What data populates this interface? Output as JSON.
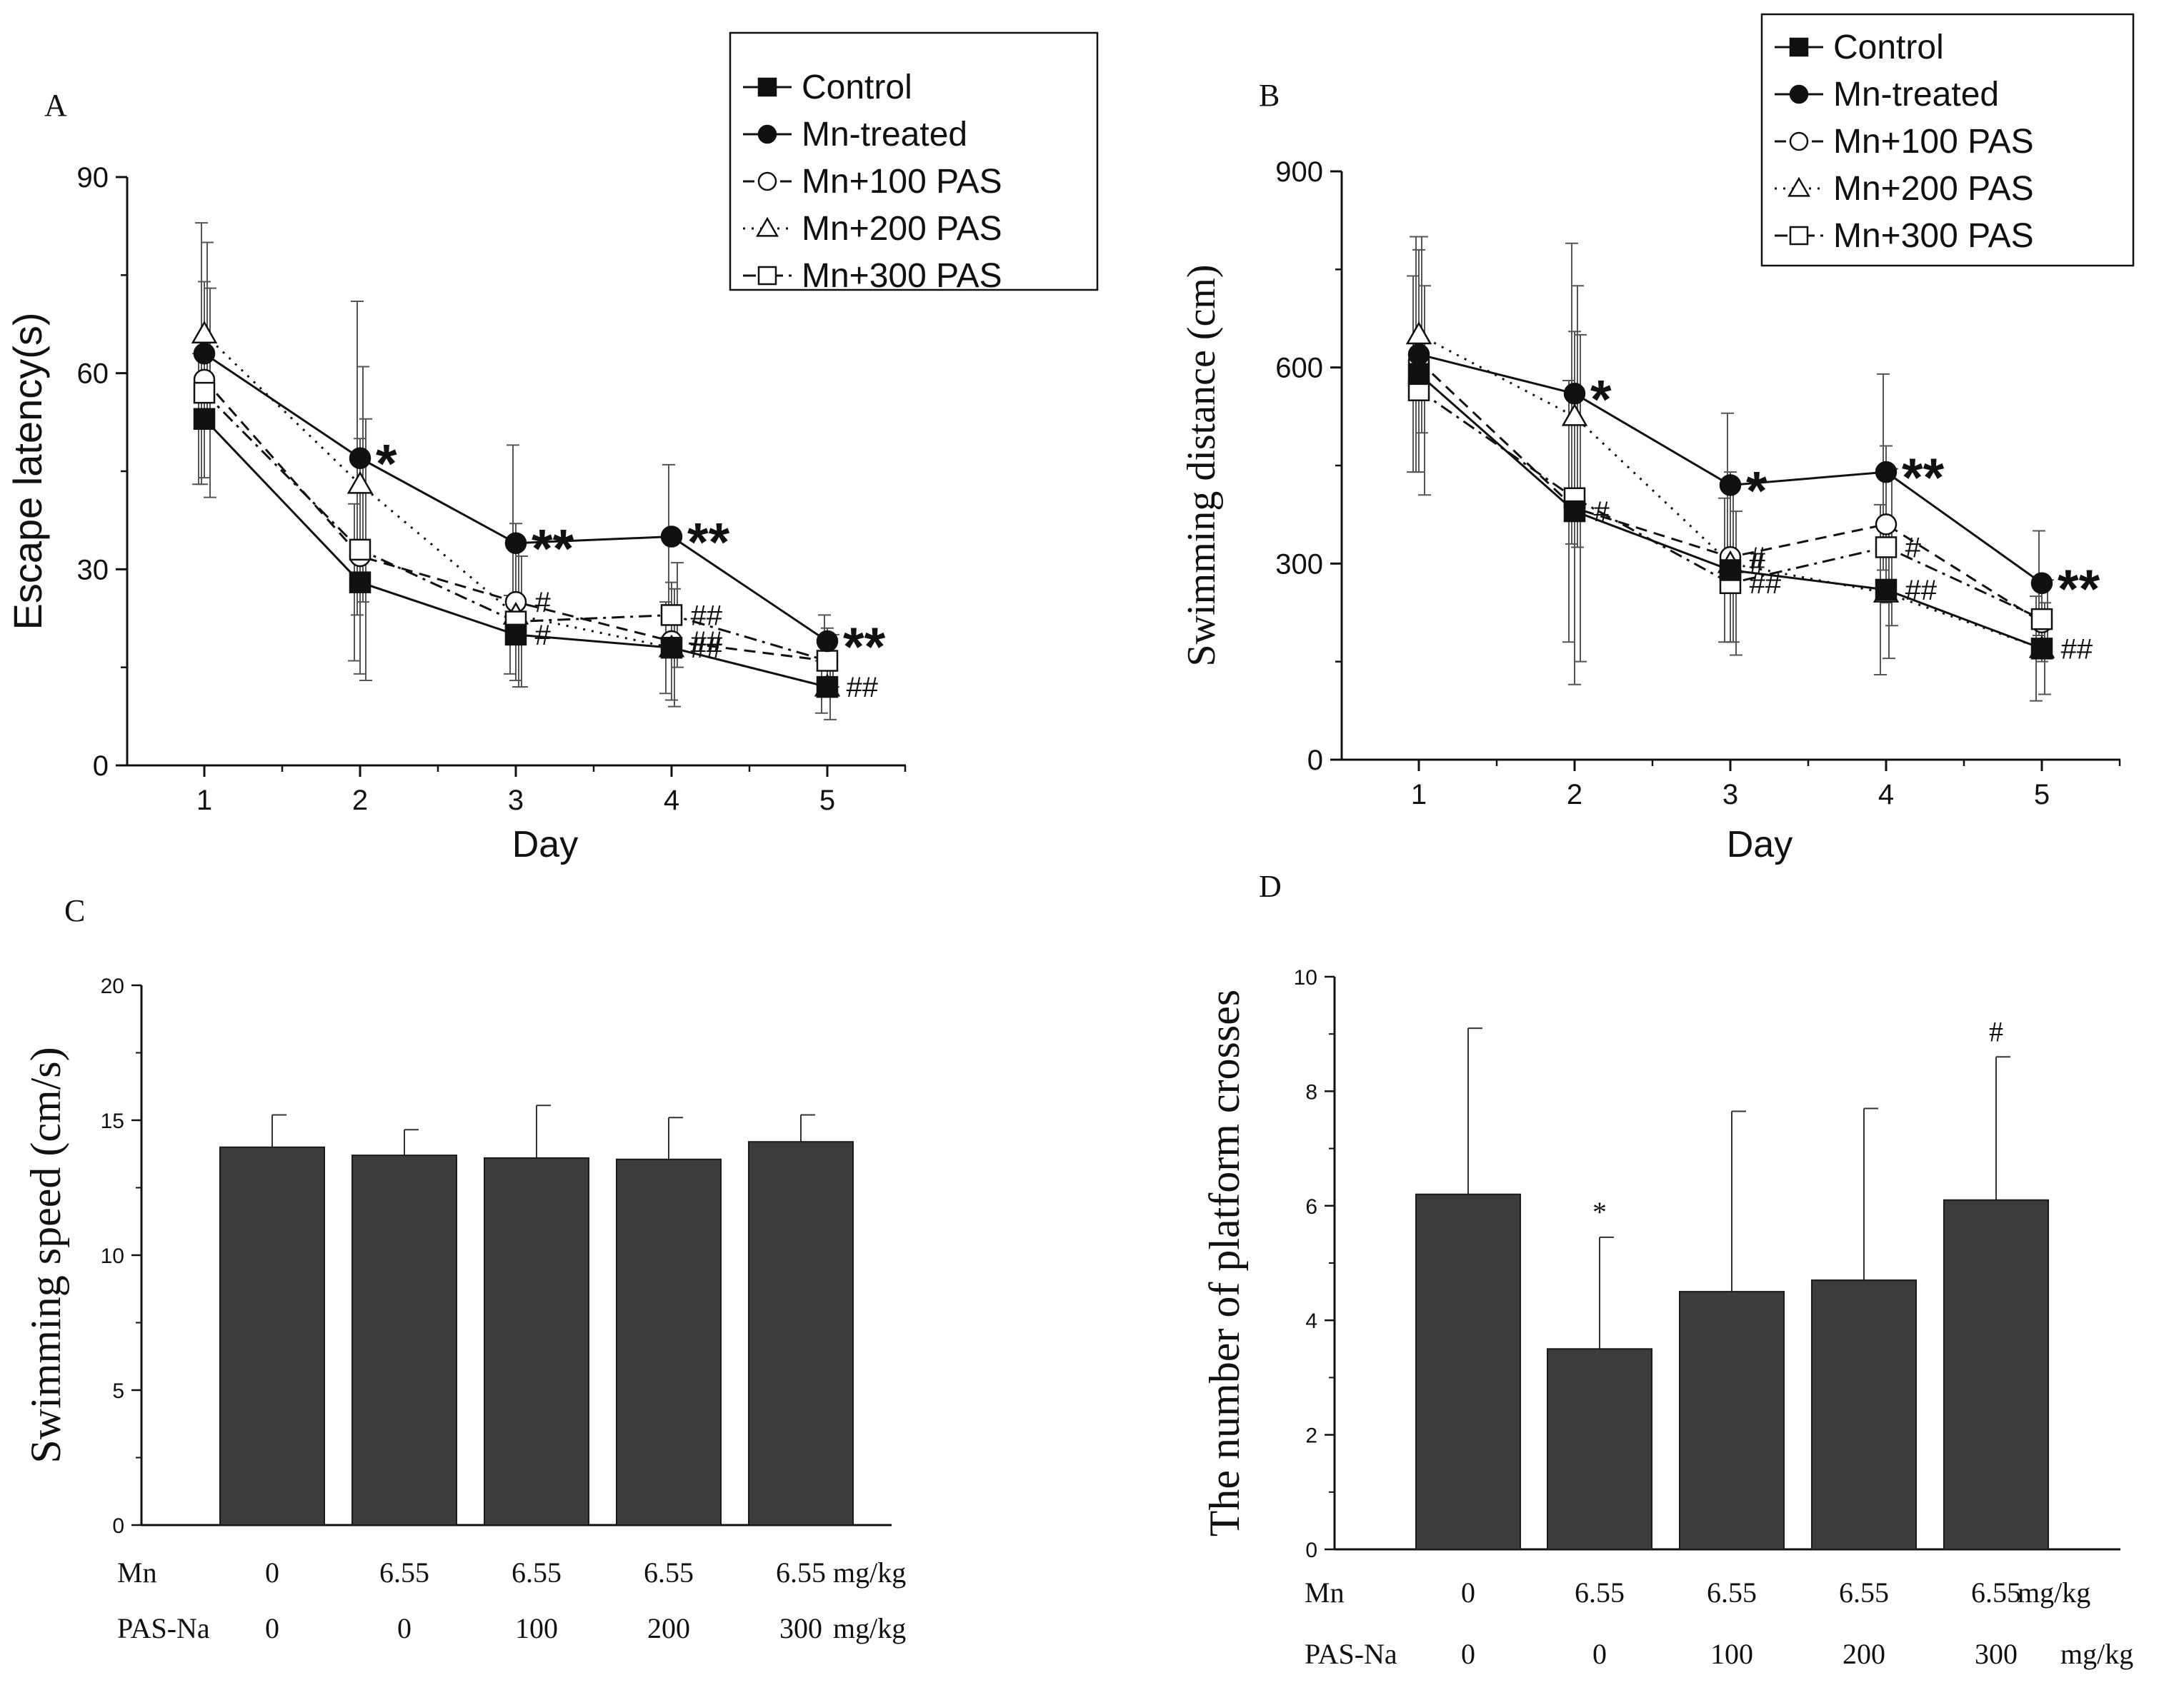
{
  "chart_data": [
    {
      "panel": "A",
      "type": "line",
      "xlabel": "Day",
      "ylabel": "Escape latency(s)",
      "x": [
        1,
        2,
        3,
        4,
        5
      ],
      "xticks": [
        "1",
        "2",
        "3",
        "4",
        "5"
      ],
      "ylim": [
        0,
        90
      ],
      "yticks": [
        "0",
        "30",
        "60",
        "90"
      ],
      "legend": "top-right",
      "series": [
        {
          "name": "Control",
          "marker": "square-filled",
          "dash": "solid",
          "values": [
            53,
            28,
            20,
            18,
            12
          ],
          "err": [
            10,
            12,
            6,
            7,
            4
          ]
        },
        {
          "name": "Mn-treated",
          "marker": "circle-filled",
          "dash": "solid",
          "values": [
            63,
            47,
            34,
            35,
            19
          ],
          "err": [
            20,
            24,
            15,
            11,
            4
          ]
        },
        {
          "name": "Mn+100 PAS",
          "marker": "circle-open",
          "dash": "dash",
          "values": [
            59,
            32,
            25,
            19,
            16
          ],
          "err": [
            15,
            18,
            12,
            9,
            5
          ]
        },
        {
          "name": "Mn+200 PAS",
          "marker": "triangle-open",
          "dash": "dot",
          "values": [
            66,
            43,
            23,
            18,
            12
          ],
          "err": [
            14,
            18,
            11,
            9,
            5
          ]
        },
        {
          "name": "Mn+300 PAS",
          "marker": "square-open",
          "dash": "dashdot",
          "values": [
            57,
            33,
            22,
            23,
            16
          ],
          "err": [
            16,
            20,
            10,
            8,
            4
          ]
        }
      ],
      "annotations": [
        {
          "x": 2,
          "series": "Mn-treated",
          "text": "*"
        },
        {
          "x": 3,
          "series": "Mn-treated",
          "text": "**"
        },
        {
          "x": 4,
          "series": "Mn-treated",
          "text": "**"
        },
        {
          "x": 5,
          "series": "Mn-treated",
          "text": "**"
        },
        {
          "x": 3,
          "series": "Mn+100 PAS",
          "text": "#"
        },
        {
          "x": 3,
          "series": "Control",
          "text": "#"
        },
        {
          "x": 4,
          "series": "Mn+300 PAS",
          "text": "##"
        },
        {
          "x": 4,
          "series": "Mn+100 PAS",
          "text": "##"
        },
        {
          "x": 4,
          "series": "Control",
          "text": "##"
        },
        {
          "x": 5,
          "series": "Control",
          "text": "##"
        }
      ]
    },
    {
      "panel": "B",
      "type": "line",
      "xlabel": "Day",
      "ylabel": "Swimming distance (cm)",
      "x": [
        1,
        2,
        3,
        4,
        5
      ],
      "xticks": [
        "1",
        "2",
        "3",
        "4",
        "5"
      ],
      "ylim": [
        0,
        900
      ],
      "yticks": [
        "0",
        "300",
        "600",
        "900"
      ],
      "legend": "top-right",
      "series": [
        {
          "name": "Control",
          "marker": "square-filled",
          "dash": "solid",
          "values": [
            590,
            380,
            290,
            260,
            170
          ],
          "err": [
            150,
            200,
            110,
            130,
            80
          ]
        },
        {
          "name": "Mn-treated",
          "marker": "circle-filled",
          "dash": "solid",
          "values": [
            620,
            560,
            420,
            440,
            270
          ],
          "err": [
            180,
            230,
            110,
            150,
            80
          ]
        },
        {
          "name": "Mn+100 PAS",
          "marker": "circle-open",
          "dash": "dash",
          "values": [
            610,
            385,
            310,
            360,
            210
          ],
          "err": [
            170,
            270,
            130,
            120,
            60
          ]
        },
        {
          "name": "Mn+200 PAS",
          "marker": "triangle-open",
          "dash": "dot",
          "values": [
            650,
            525,
            300,
            255,
            170
          ],
          "err": [
            150,
            200,
            120,
            100,
            70
          ]
        },
        {
          "name": "Mn+300 PAS",
          "marker": "square-open",
          "dash": "dashdot",
          "values": [
            565,
            400,
            270,
            325,
            215
          ],
          "err": [
            160,
            250,
            110,
            120,
            60
          ]
        }
      ],
      "annotations": [
        {
          "x": 2,
          "series": "Mn-treated",
          "text": "*"
        },
        {
          "x": 3,
          "series": "Mn-treated",
          "text": "*"
        },
        {
          "x": 4,
          "series": "Mn-treated",
          "text": "**"
        },
        {
          "x": 5,
          "series": "Mn-treated",
          "text": "**"
        },
        {
          "x": 2,
          "series": "Control",
          "text": "#"
        },
        {
          "x": 3,
          "series": "Mn+100 PAS",
          "text": "#"
        },
        {
          "x": 3,
          "series": "Mn+200 PAS",
          "text": "#"
        },
        {
          "x": 3,
          "series": "Mn+300 PAS",
          "text": "##"
        },
        {
          "x": 4,
          "series": "Mn+300 PAS",
          "text": "#"
        },
        {
          "x": 4,
          "series": "Control",
          "text": "##"
        },
        {
          "x": 5,
          "series": "Control",
          "text": "##"
        }
      ]
    },
    {
      "panel": "C",
      "type": "bar",
      "ylabel": "Swimming speed (cm/s)",
      "ylim": [
        0,
        20
      ],
      "yticks": [
        "0",
        "5",
        "10",
        "15",
        "20"
      ],
      "values": [
        14.0,
        13.7,
        13.6,
        13.55,
        14.2
      ],
      "err": [
        1.2,
        0.95,
        1.95,
        1.55,
        1.0
      ],
      "annotations": [
        "",
        "",
        "",
        "",
        ""
      ],
      "table": {
        "rows": [
          {
            "label": "Mn",
            "values": [
              "0",
              "6.55",
              "6.55",
              "6.55",
              "6.55"
            ],
            "unit": "mg/kg"
          },
          {
            "label": "PAS-Na",
            "values": [
              "0",
              "0",
              "100",
              "200",
              "300"
            ],
            "unit": "mg/kg"
          }
        ]
      }
    },
    {
      "panel": "D",
      "type": "bar",
      "ylabel": "The number of platform crosses",
      "ylim": [
        0,
        10
      ],
      "yticks": [
        "0",
        "2",
        "4",
        "6",
        "8",
        "10"
      ],
      "values": [
        6.2,
        3.5,
        4.5,
        4.7,
        6.1
      ],
      "err": [
        2.9,
        1.95,
        3.15,
        3.0,
        2.5
      ],
      "annotations": [
        "",
        "*",
        "",
        "",
        "#"
      ],
      "table": {
        "rows": [
          {
            "label": "Mn",
            "values": [
              "0",
              "6.55",
              "6.55",
              "6.55",
              "6.55"
            ],
            "unit": "mg/kg"
          },
          {
            "label": "PAS-Na",
            "values": [
              "0",
              "0",
              "100",
              "200",
              "300"
            ],
            "unit": "mg/kg"
          }
        ]
      }
    }
  ]
}
